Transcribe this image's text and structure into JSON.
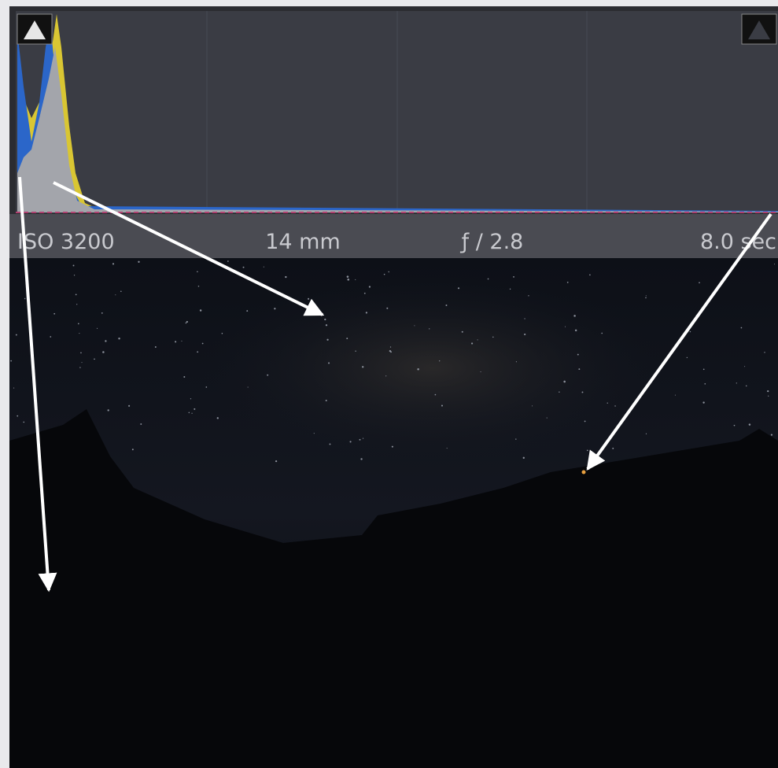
{
  "histogram": {
    "info": [
      "ISO 3200",
      "14 mm",
      "ƒ / 2.8",
      "8.0 sec"
    ]
  }
}
